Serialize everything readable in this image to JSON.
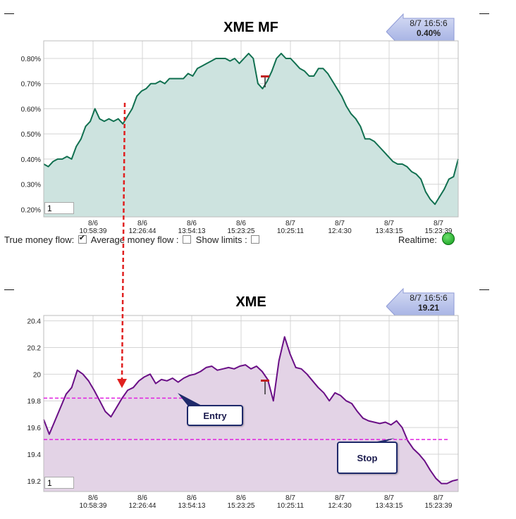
{
  "top_chart": {
    "title": "XME MF",
    "callout": {
      "time": "8/7 16:5:6",
      "value": "0.40%"
    },
    "input_value": "1"
  },
  "bottom_chart": {
    "title": "XME",
    "callout": {
      "time": "8/7 16:5:6",
      "value": "19.21"
    },
    "input_value": "1"
  },
  "controls": {
    "true_mf_label": "True money flow:",
    "avg_mf_label": "Average money flow :",
    "show_limits_label": "Show limits :",
    "realtime_label": "Realtime:"
  },
  "annotations": {
    "entry_label": "Entry",
    "stop_label": "Stop",
    "entry_level": 19.82,
    "stop_level": 19.51
  },
  "colors": {
    "mf_line": "#117050",
    "mf_fill": "#cde3df",
    "price_line": "#6a0f86",
    "price_fill": "#e3d3e6",
    "dashed_lines": "#e020e0",
    "arrow": "#e02020"
  },
  "chart_data": [
    {
      "type": "area",
      "title": "XME MF",
      "x_ticks": [
        {
          "date": "8/6",
          "time": "10:58:39"
        },
        {
          "date": "8/6",
          "time": "12:26:44"
        },
        {
          "date": "8/6",
          "time": "13:54:13"
        },
        {
          "date": "8/6",
          "time": "15:23:25"
        },
        {
          "date": "8/7",
          "time": "10:25:11"
        },
        {
          "date": "8/7",
          "time": "12:4:30"
        },
        {
          "date": "8/7",
          "time": "13:43:15"
        },
        {
          "date": "8/7",
          "time": "15:23:39"
        }
      ],
      "y_ticks": [
        "0.20%",
        "0.30%",
        "0.40%",
        "0.50%",
        "0.60%",
        "0.70%",
        "0.80%"
      ],
      "ylim": [
        0.17,
        0.87
      ],
      "grid": true,
      "series": [
        {
          "values_pct": [
            0.38,
            0.37,
            0.39,
            0.4,
            0.4,
            0.41,
            0.4,
            0.45,
            0.48,
            0.53,
            0.55,
            0.6,
            0.56,
            0.55,
            0.56,
            0.55,
            0.56,
            0.54,
            0.57,
            0.6,
            0.65,
            0.67,
            0.68,
            0.7,
            0.7,
            0.71,
            0.7,
            0.72,
            0.72,
            0.72,
            0.72,
            0.74,
            0.73,
            0.76,
            0.77,
            0.78,
            0.79,
            0.8,
            0.8,
            0.8,
            0.79,
            0.8,
            0.78,
            0.8,
            0.82,
            0.8,
            0.7,
            0.68,
            0.71,
            0.75,
            0.8,
            0.82,
            0.8,
            0.8,
            0.78,
            0.76,
            0.75,
            0.73,
            0.73,
            0.76,
            0.76,
            0.74,
            0.71,
            0.68,
            0.65,
            0.61,
            0.58,
            0.56,
            0.53,
            0.48,
            0.48,
            0.47,
            0.45,
            0.43,
            0.41,
            0.39,
            0.38,
            0.38,
            0.37,
            0.35,
            0.34,
            0.32,
            0.27,
            0.24,
            0.22,
            0.25,
            0.28,
            0.32,
            0.33,
            0.4
          ]
        }
      ]
    },
    {
      "type": "area",
      "title": "XME",
      "x_ticks": [
        {
          "date": "8/6",
          "time": "10:58:39"
        },
        {
          "date": "8/6",
          "time": "12:26:44"
        },
        {
          "date": "8/6",
          "time": "13:54:13"
        },
        {
          "date": "8/6",
          "time": "15:23:25"
        },
        {
          "date": "8/7",
          "time": "10:25:11"
        },
        {
          "date": "8/7",
          "time": "12:4:30"
        },
        {
          "date": "8/7",
          "time": "13:43:15"
        },
        {
          "date": "8/7",
          "time": "15:23:39"
        }
      ],
      "y_ticks": [
        "19.2",
        "19.4",
        "19.6",
        "19.8",
        "20",
        "20.2",
        "20.4"
      ],
      "ylim": [
        19.12,
        20.44
      ],
      "grid": true,
      "series": [
        {
          "values": [
            19.66,
            19.55,
            19.65,
            19.75,
            19.85,
            19.9,
            20.03,
            20.0,
            19.95,
            19.88,
            19.8,
            19.72,
            19.68,
            19.75,
            19.82,
            19.88,
            19.9,
            19.95,
            19.98,
            20.0,
            19.93,
            19.96,
            19.95,
            19.97,
            19.94,
            19.97,
            19.99,
            20.0,
            20.02,
            20.05,
            20.06,
            20.03,
            20.04,
            20.05,
            20.04,
            20.06,
            20.07,
            20.04,
            20.06,
            20.02,
            19.96,
            19.8,
            20.1,
            20.28,
            20.15,
            20.05,
            20.04,
            20.0,
            19.95,
            19.9,
            19.86,
            19.8,
            19.86,
            19.84,
            19.8,
            19.78,
            19.72,
            19.67,
            19.65,
            19.64,
            19.63,
            19.64,
            19.62,
            19.65,
            19.6,
            19.5,
            19.44,
            19.4,
            19.35,
            19.28,
            19.22,
            19.18,
            19.18,
            19.2,
            19.21
          ]
        }
      ]
    }
  ]
}
